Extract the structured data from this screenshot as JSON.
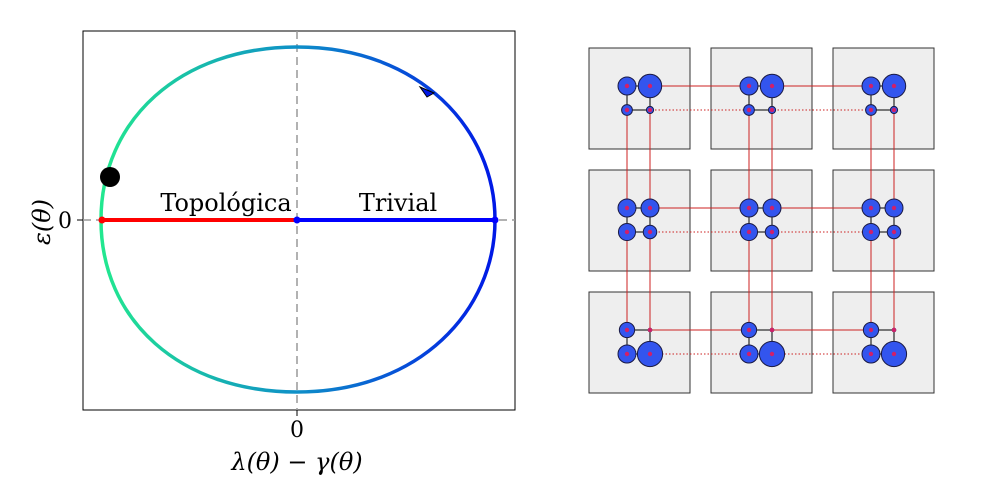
{
  "left_panel": {
    "x_axis_label": "λ(θ) − γ(θ)",
    "y_axis_label": "ε(θ)",
    "x_tick_label": "0",
    "y_tick_label": "0",
    "region_labels": {
      "topological": "Topológica",
      "trivial": "Trivial"
    },
    "colors": {
      "topological_segment": "#ff0000",
      "trivial_segment": "#0000ff",
      "curve_left": "#22e88f",
      "curve_right": "#0018e6",
      "marker": "#000000",
      "guides": "#999999"
    }
  },
  "right_panel": {
    "grid_rows": 3,
    "grid_cols": 3,
    "colors": {
      "cell_fill": "#eeeeee",
      "site_fill": "#3355ee",
      "bond": "#cc2222"
    },
    "rows": [
      {
        "sites": [
          [
            1,
            1.3
          ],
          [
            0.6,
            0.4
          ]
        ]
      },
      {
        "sites": [
          [
            1,
            1
          ],
          [
            0.95,
            0.75
          ]
        ]
      },
      {
        "sites": [
          [
            0.85,
            0.2
          ],
          [
            1,
            1.4
          ]
        ]
      }
    ]
  }
}
